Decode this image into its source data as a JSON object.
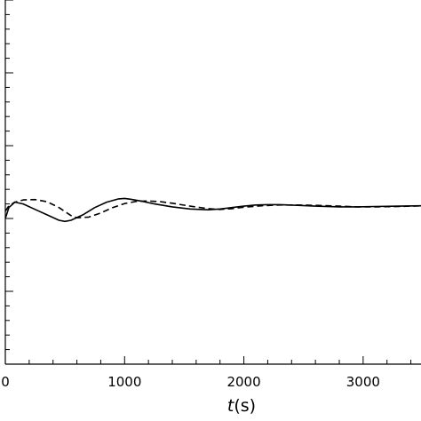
{
  "chart_data": {
    "type": "line",
    "title": "",
    "xlabel_var": "t",
    "xlabel_unit": "(s)",
    "ylabel": "",
    "xlim": [
      0,
      3500
    ],
    "x_ticks": [
      0,
      1000,
      2000,
      3000
    ],
    "x_tick_labels": [
      "0",
      "1000",
      "2000",
      "3000"
    ],
    "ylim": [
      0,
      1
    ],
    "y_major_count": 5,
    "grid": false,
    "legend": "none",
    "series": [
      {
        "style": "solid",
        "color": "#000000",
        "x": [
          0,
          30,
          80,
          150,
          250,
          350,
          450,
          500,
          550,
          650,
          750,
          850,
          950,
          1000,
          1050,
          1150,
          1250,
          1400,
          1550,
          1700,
          1800,
          1900,
          2000,
          2100,
          2200,
          2300,
          2450,
          2600,
          2800,
          2950,
          3100,
          3300,
          3500
        ],
        "y": [
          0.4,
          0.43,
          0.445,
          0.44,
          0.425,
          0.41,
          0.395,
          0.392,
          0.395,
          0.41,
          0.43,
          0.445,
          0.454,
          0.455,
          0.453,
          0.447,
          0.44,
          0.432,
          0.426,
          0.424,
          0.426,
          0.43,
          0.434,
          0.437,
          0.438,
          0.438,
          0.436,
          0.434,
          0.432,
          0.432,
          0.433,
          0.434,
          0.435
        ]
      },
      {
        "style": "dashed",
        "color": "#000000",
        "x": [
          0,
          30,
          80,
          150,
          250,
          350,
          450,
          550,
          600,
          700,
          800,
          900,
          1000,
          1100,
          1200,
          1300,
          1400,
          1550,
          1700,
          1800,
          1900,
          2000,
          2150,
          2300,
          2450,
          2600,
          2800,
          2950,
          3100,
          3300,
          3500
        ],
        "y": [
          0.42,
          0.435,
          0.445,
          0.451,
          0.452,
          0.446,
          0.43,
          0.408,
          0.402,
          0.404,
          0.415,
          0.43,
          0.441,
          0.447,
          0.448,
          0.446,
          0.442,
          0.434,
          0.427,
          0.425,
          0.427,
          0.431,
          0.435,
          0.437,
          0.437,
          0.436,
          0.434,
          0.432,
          0.432,
          0.433,
          0.435
        ]
      }
    ]
  }
}
